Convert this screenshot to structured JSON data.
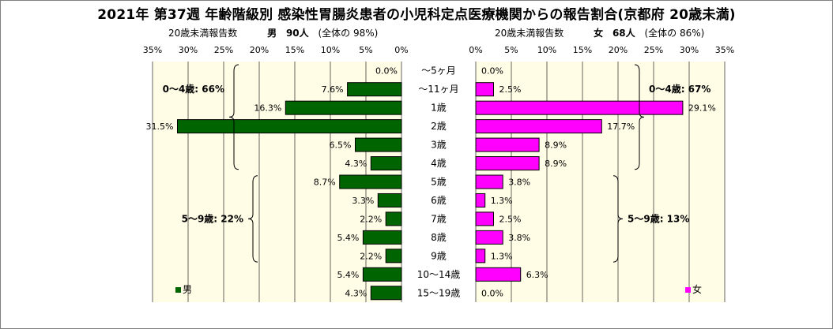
{
  "title": "2021年 第37週 年齢階級別 感染性胃腸炎患者の小児科定点医療機関からの報告割合(京都府 20歳未満)",
  "male_header": {
    "caption": "20歳未満報告数",
    "label": "男",
    "count": "90人",
    "share": "(全体の 98%)"
  },
  "female_header": {
    "caption": "20歳未満報告数",
    "label": "女",
    "count": "68人",
    "share": "(全体の 86%)"
  },
  "legend": {
    "male": "男",
    "female": "女"
  },
  "colors": {
    "male": "#006400",
    "female": "#ff00ff",
    "plot_bg": "#fffde6"
  },
  "chart_data": {
    "type": "bar",
    "categories": [
      "～5ヶ月",
      "～11ヶ月",
      "1歳",
      "2歳",
      "3歳",
      "4歳",
      "5歳",
      "6歳",
      "7歳",
      "8歳",
      "9歳",
      "10～14歳",
      "15～19歳"
    ],
    "series": [
      {
        "name": "男",
        "values": [
          0.0,
          7.6,
          16.3,
          31.5,
          6.5,
          4.3,
          8.7,
          3.3,
          2.2,
          5.4,
          2.2,
          5.4,
          4.3
        ]
      },
      {
        "name": "女",
        "values": [
          0.0,
          2.5,
          29.1,
          17.7,
          8.9,
          8.9,
          3.8,
          1.3,
          2.5,
          3.8,
          1.3,
          6.3,
          0.0
        ]
      }
    ],
    "xlim": [
      0,
      35
    ],
    "ticks": [
      "0%",
      "5%",
      "10%",
      "15%",
      "20%",
      "25%",
      "30%",
      "35%"
    ],
    "grid": true,
    "group_labels": {
      "male": [
        {
          "text": "0～4歳: 66%",
          "from": 0,
          "to": 5
        },
        {
          "text": "5～9歳: 22%",
          "from": 6,
          "to": 10
        }
      ],
      "female": [
        {
          "text": "0～4歳: 67%",
          "from": 0,
          "to": 5
        },
        {
          "text": "5～9歳: 13%",
          "from": 6,
          "to": 10
        }
      ]
    }
  }
}
